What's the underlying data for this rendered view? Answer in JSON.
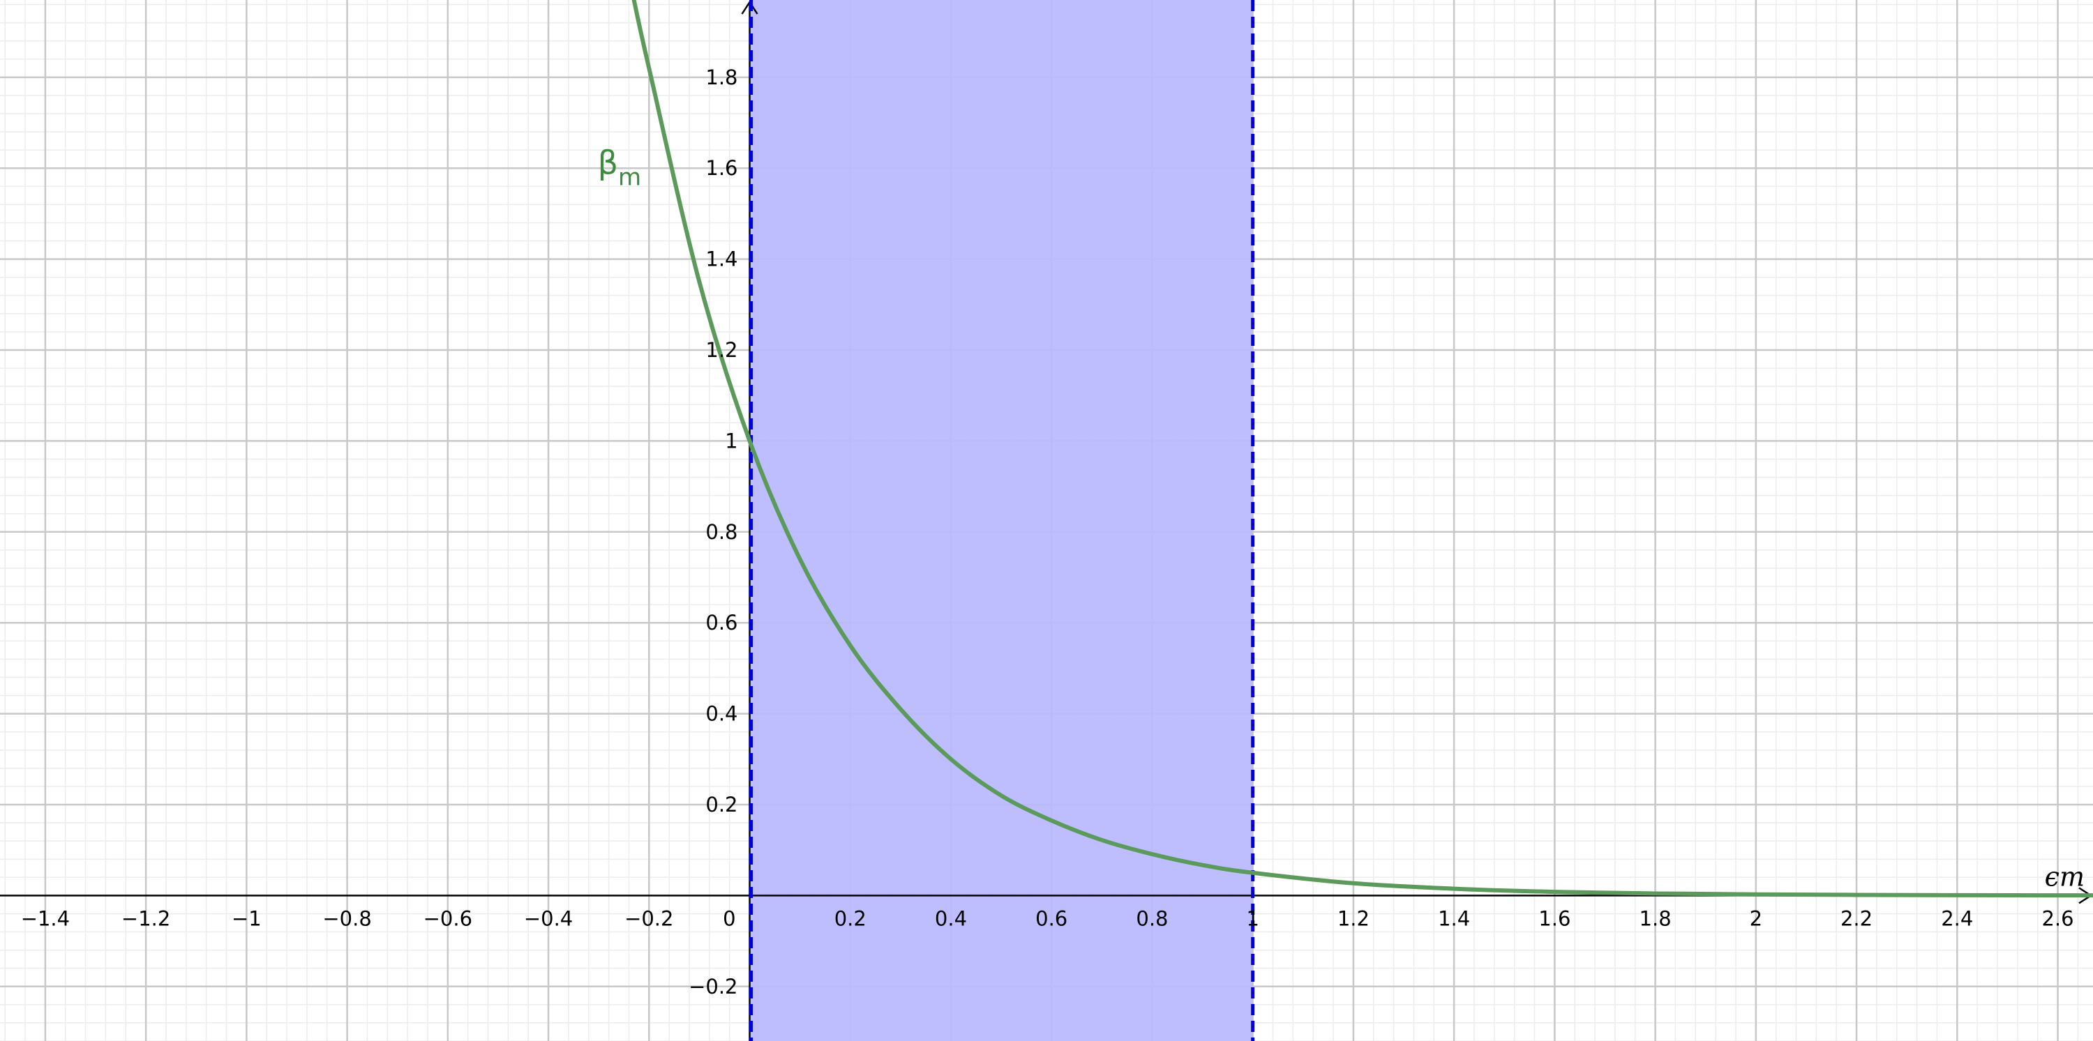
{
  "chart_data": {
    "type": "line",
    "title": "",
    "xlabel": "ϵm",
    "ylabel": "",
    "xlim": [
      -1.49,
      2.67
    ],
    "ylim": [
      -0.32,
      1.97
    ],
    "grid": true,
    "x_ticks": [
      -1.4,
      -1.2,
      -1,
      -0.8,
      -0.6,
      -0.4,
      -0.2,
      0.2,
      0.4,
      0.6,
      0.8,
      1,
      1.2,
      1.4,
      1.6,
      1.8,
      2,
      2.2,
      2.4,
      2.6
    ],
    "x_tick_labels": [
      "−1.4",
      "−1.2",
      "−1",
      "−0.8",
      "−0.6",
      "−0.4",
      "−0.2",
      "0.2",
      "0.4",
      "0.6",
      "0.8",
      "1",
      "1.2",
      "1.4",
      "1.6",
      "1.8",
      "2",
      "2.2",
      "2.4",
      "2.6"
    ],
    "y_ticks": [
      -0.2,
      0.2,
      0.4,
      0.6,
      0.8,
      1,
      1.2,
      1.4,
      1.6,
      1.8
    ],
    "y_tick_labels": [
      "−0.2",
      "0.2",
      "0.4",
      "0.6",
      "0.8",
      "1",
      "1.2",
      "1.4",
      "1.6",
      "1.8"
    ],
    "origin_label": "0",
    "series": [
      {
        "name": "β",
        "name_subscript": "m",
        "color": "#5b9a5b",
        "label_color": "#3e8a3e",
        "x": [
          -0.23,
          -0.2,
          -0.1,
          0,
          0.1,
          0.2,
          0.3,
          0.4,
          0.5,
          0.6,
          0.7,
          0.8,
          0.9,
          1.0,
          1.2,
          1.4,
          1.6,
          1.8,
          2.0,
          2.2,
          2.4,
          2.67
        ],
        "y": [
          1.97,
          1.82,
          1.35,
          1.0,
          0.74,
          0.55,
          0.41,
          0.3,
          0.22,
          0.165,
          0.122,
          0.091,
          0.067,
          0.05,
          0.027,
          0.015,
          0.008,
          0.0045,
          0.0025,
          0.0014,
          0.0007,
          0.0003
        ]
      }
    ],
    "shaded_region": {
      "x_from": 0,
      "x_to": 1,
      "fill": "#b8b8ff",
      "boundary_color": "#0000dd"
    }
  }
}
